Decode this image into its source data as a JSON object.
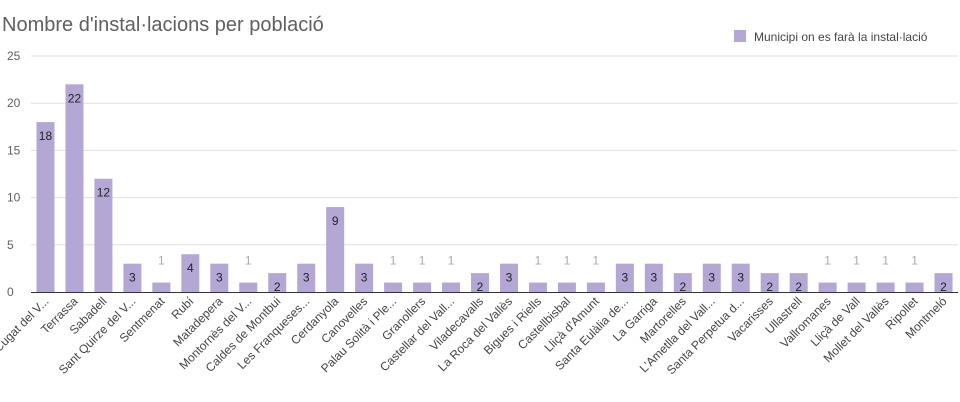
{
  "chart_data": {
    "type": "bar",
    "title": "Nombre d'instal·lacions per població",
    "xlabel": "",
    "ylabel": "",
    "ylim": [
      0,
      25
    ],
    "yticks": [
      "0",
      "5",
      "10",
      "15",
      "20",
      "25"
    ],
    "grid": true,
    "legend_position": "top-right",
    "colors": {
      "bar": "#b4a7d6",
      "grid": "#e0e0e0",
      "axis": "#333333"
    },
    "categories": [
      "Sant Cugat del V...",
      "Terrassa",
      "Sabadell",
      "Sant Quirze del V...",
      "Sentmenat",
      "Rubí",
      "Matadepera",
      "Montornès del V...",
      "Caldes de Montbui",
      "Les Franqueses...",
      "Cerdanyola",
      "Canovelles",
      "Palau Solità i Ple...",
      "Granollers",
      "Castellar del Vall...",
      "Viladecavalls",
      "La Roca del Vallès",
      "Bigues i Riells",
      "Castellbisbal",
      "Lliçà d'Amunt",
      "Santa Eulàlia de...",
      "La Garriga",
      "Martorelles",
      "L'Ametlla del Vall...",
      "Santa Perpetua d...",
      "Vacarisses",
      "Ullastrell",
      "Vallromanes",
      "Lliçà de Vall",
      "Mollet del Vallès",
      "Ripollet",
      "Montmeló"
    ],
    "series": [
      {
        "name": "Municipi on es farà la instal·lació",
        "values": [
          18,
          22,
          12,
          3,
          1,
          4,
          3,
          1,
          2,
          3,
          9,
          3,
          1,
          1,
          1,
          2,
          3,
          1,
          1,
          1,
          3,
          3,
          2,
          3,
          3,
          2,
          2,
          1,
          1,
          1,
          1,
          2
        ]
      }
    ]
  }
}
